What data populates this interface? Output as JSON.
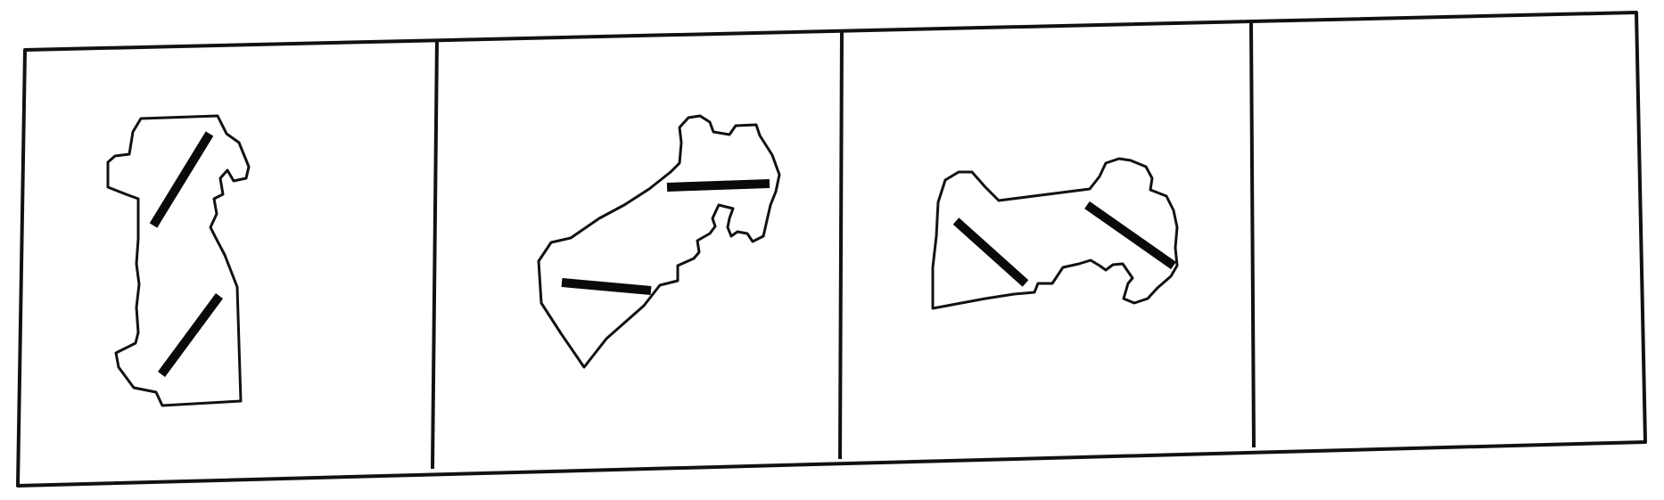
{
  "puzzle": {
    "panel_count": 4,
    "panels": [
      {
        "id": 1,
        "content": "shape-with-two-bars"
      },
      {
        "id": 2,
        "content": "shape-with-two-bars"
      },
      {
        "id": 3,
        "content": "shape-with-two-bars"
      },
      {
        "id": 4,
        "content": "empty"
      }
    ]
  },
  "colors": {
    "background": "#ffffff",
    "stroke": "#111111",
    "bar": "#0a0a0a"
  }
}
